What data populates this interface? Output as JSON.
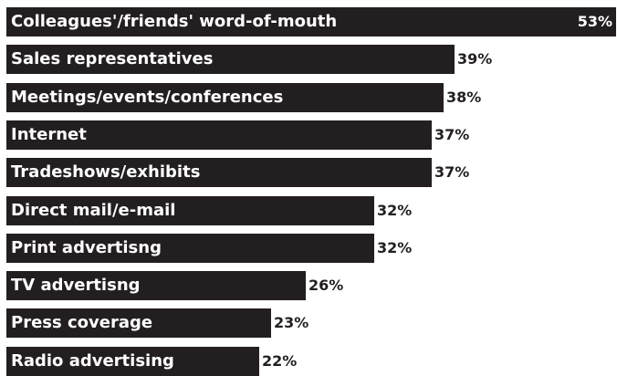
{
  "chart_data": {
    "type": "bar",
    "orientation": "horizontal",
    "categories": [
      "Colleagues'/friends' word-of-mouth",
      "Sales representatives",
      "Meetings/events/conferences",
      "Internet",
      "Tradeshows/exhibits",
      "Direct mail/e-mail",
      "Print advertisng",
      "TV advertisng",
      "Press coverage",
      "Radio advertising"
    ],
    "values": [
      53,
      39,
      38,
      37,
      37,
      32,
      32,
      26,
      23,
      22
    ],
    "value_labels": [
      "53%",
      "39%",
      "38%",
      "37%",
      "37%",
      "32%",
      "32%",
      "26%",
      "23%",
      "22%"
    ],
    "bar_color": "#231f20",
    "grid": false,
    "legend": "none"
  }
}
